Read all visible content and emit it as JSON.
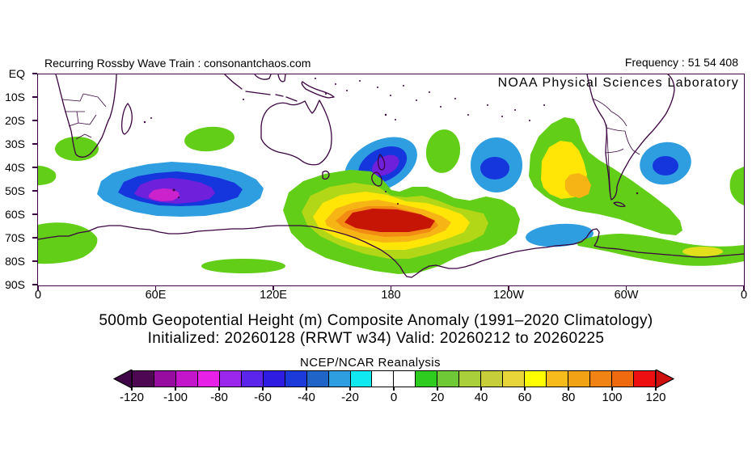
{
  "header": {
    "watermark": "Recurring Rossby Wave Train : consonantchaos.com",
    "frequency": "Frequency : 51 54 408",
    "agency": "NOAA Physical Sciences Laboratory"
  },
  "titles": {
    "line1": "500mb Geopotential Height (m) Composite Anomaly (1991–2020 Climatology)",
    "line2": "Initialized: 20260128 (RRWT w34) Valid: 20260212 to 20260225",
    "colorbar_source": "NCEP/NCAR Reanalysis"
  },
  "axes": {
    "lat_labels": [
      "EQ",
      "10S",
      "20S",
      "30S",
      "40S",
      "50S",
      "60S",
      "70S",
      "80S",
      "90S"
    ],
    "lon_labels": [
      "0",
      "60E",
      "120E",
      "180",
      "120W",
      "60W",
      "0"
    ]
  },
  "colorbar": {
    "labels": [
      "-120",
      "-100",
      "-80",
      "-60",
      "-40",
      "-20",
      "0",
      "20",
      "40",
      "60",
      "80",
      "100",
      "120"
    ],
    "cells": [
      "#4e0753",
      "#970da0",
      "#c315c9",
      "#e620e6",
      "#9b26ec",
      "#5c25ec",
      "#2e1ce2",
      "#1b3ad9",
      "#2064c8",
      "#2f9ee0",
      "#10e9ef",
      "#ffffff",
      "#ffffff",
      "#2ecc1f",
      "#6fc937",
      "#a9cf3a",
      "#c6cf39",
      "#e8d53a",
      "#ffff00",
      "#f7bb1c",
      "#f2a315",
      "#f08314",
      "#ef6a0e",
      "#ee1010"
    ],
    "below_arrow": "#400549",
    "above_arrow": "#cf0e0e"
  },
  "colors": {
    "frame": "#3a0340",
    "coastline": "#3a0340",
    "text": "#000000",
    "map_palette": {
      "negative": [
        "#2f9ee0",
        "#1535dd",
        "#6e20da",
        "#cc22cc"
      ],
      "positive": [
        "#62ce17",
        "#b2d717",
        "#ffe606",
        "#f7b515",
        "#f28c12",
        "#c61505"
      ],
      "pale_yellow": "#e3df1d"
    }
  },
  "chart_data": {
    "type": "heatmap",
    "subtype": "filled-contour-anomaly-map",
    "title": "500mb Geopotential Height (m) Composite Anomaly (1991–2020 Climatology)",
    "subtitle": "Initialized: 20260128 (RRWT w34) Valid: 20260212 to 20260225",
    "source_label": "NCEP/NCAR Reanalysis",
    "units": "m",
    "projection": "cylindrical, Equator to 90S, longitude 0E eastward to 0E",
    "x_axis": {
      "label": "longitude",
      "ticks": [
        "0",
        "60E",
        "120E",
        "180",
        "120W",
        "60W",
        "0"
      ]
    },
    "y_axis": {
      "label": "latitude",
      "ticks": [
        "EQ",
        "10S",
        "20S",
        "30S",
        "40S",
        "50S",
        "60S",
        "70S",
        "80S",
        "90S"
      ]
    },
    "colorbar": {
      "range": [
        -120,
        120
      ],
      "step": 10,
      "tick_step": 20,
      "colors": [
        "#4e0753",
        "#970da0",
        "#c315c9",
        "#e620e6",
        "#9b26ec",
        "#5c25ec",
        "#2e1ce2",
        "#1b3ad9",
        "#2064c8",
        "#2f9ee0",
        "#10e9ef",
        "#ffffff",
        "#ffffff",
        "#2ecc1f",
        "#6fc937",
        "#a9cf3a",
        "#c6cf39",
        "#e8d53a",
        "#ffff00",
        "#f7bb1c",
        "#f2a315",
        "#f08314",
        "#ef6a0e",
        "#ee1010"
      ],
      "below_color": "#400549",
      "above_color": "#cf0e0e"
    },
    "anomaly_centers": [
      {
        "name": "south-indian-ocean-low",
        "lat": "50S",
        "lon": "70E",
        "peak_m": -95
      },
      {
        "name": "new-zealand-low",
        "lat": "39S",
        "lon": "176E",
        "peak_m": -65
      },
      {
        "name": "ross-sea-high",
        "lat": "62S",
        "lon": "178W",
        "peak_m": 130
      },
      {
        "name": "southeast-pacific-low",
        "lat": "39S",
        "lon": "126W",
        "peak_m": -45
      },
      {
        "name": "southern-chile-high",
        "lat": "48S",
        "lon": "85W",
        "peak_m": 95
      },
      {
        "name": "argentine-basin-low",
        "lat": "38S",
        "lon": "40W",
        "peak_m": -45
      },
      {
        "name": "south-atlantic-edge-high",
        "lat": "45S",
        "lon": "0E",
        "peak_m": 25
      },
      {
        "name": "southeast-atlantic-high",
        "lat": "32S",
        "lon": "20E",
        "peak_m": 30
      },
      {
        "name": "central-indian-high",
        "lat": "28S",
        "lon": "87E",
        "peak_m": 30
      },
      {
        "name": "queen-maud-coast-high",
        "lat": "72S",
        "lon": "12E",
        "peak_m": 30
      },
      {
        "name": "wilkes-land-high",
        "lat": "82S",
        "lon": "105E",
        "peak_m": 25
      },
      {
        "name": "south-pacific-high-small",
        "lat": "33S",
        "lon": "153W",
        "peak_m": 30
      },
      {
        "name": "bellingshausen-low",
        "lat": "69S",
        "lon": "94W",
        "peak_m": -30
      },
      {
        "name": "weddell-coast-high",
        "lat": "76S",
        "lon": "35W",
        "peak_m": 45
      }
    ]
  }
}
